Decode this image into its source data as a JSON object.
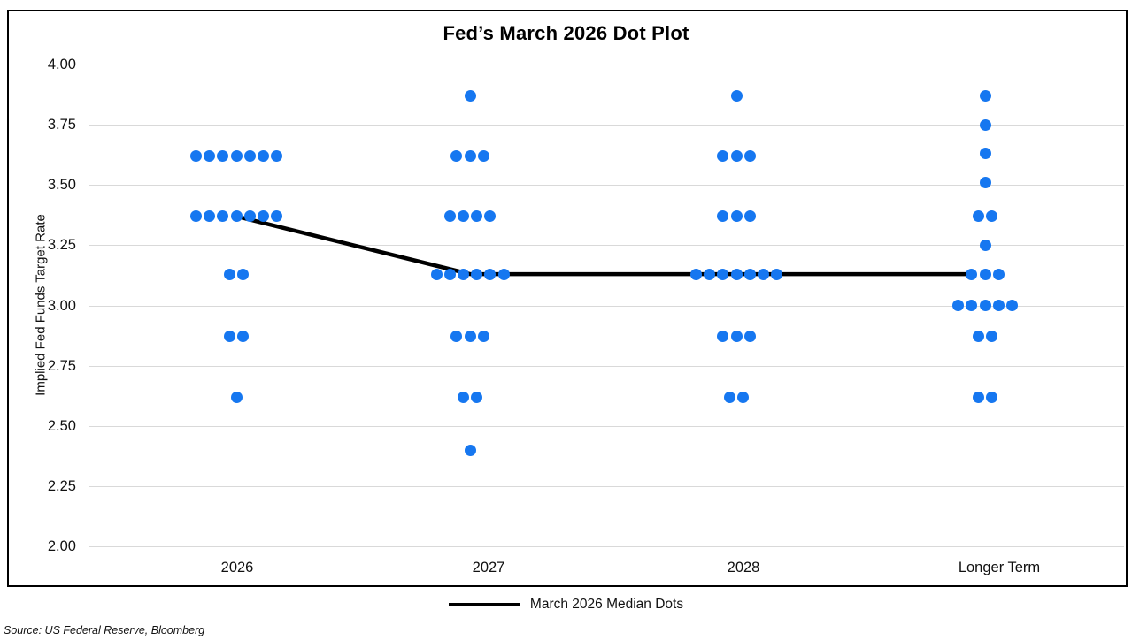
{
  "title": "Fed’s March 2026 Dot Plot",
  "y_axis": {
    "title": "Implied Fed Funds Target Rate",
    "ticks": [
      "4.00",
      "3.75",
      "3.50",
      "3.25",
      "3.00",
      "2.75",
      "2.50",
      "2.25",
      "2.00"
    ]
  },
  "x_axis": {
    "categories": [
      "2026",
      "2027",
      "2028",
      "Longer Term"
    ]
  },
  "legend": {
    "label": "March 2026 Median Dots"
  },
  "source": "Source: US Federal Reserve, Bloomberg",
  "colors": {
    "dot": "#1677f0",
    "median_line": "#000000",
    "gridline": "#d9d9d9",
    "border": "#000000"
  },
  "chart_data": {
    "type": "scatter",
    "title": "Fed’s March 2026 Dot Plot",
    "xlabel": "",
    "ylabel": "Implied Fed Funds Target Rate",
    "ylim": [
      2.0,
      4.0
    ],
    "y_tick_step": 0.25,
    "grid": "horizontal",
    "legend_position": "bottom",
    "categories": [
      "2026",
      "2027",
      "2028",
      "Longer Term"
    ],
    "dot_columns": [
      {
        "category": "2026",
        "dots": [
          {
            "rate": 3.62,
            "count": 7
          },
          {
            "rate": 3.37,
            "count": 7
          },
          {
            "rate": 3.13,
            "count": 2
          },
          {
            "rate": 2.87,
            "count": 2
          },
          {
            "rate": 2.62,
            "count": 1
          }
        ]
      },
      {
        "category": "2027",
        "dots": [
          {
            "rate": 3.87,
            "count": 1
          },
          {
            "rate": 3.62,
            "count": 3
          },
          {
            "rate": 3.37,
            "count": 4
          },
          {
            "rate": 3.13,
            "count": 6
          },
          {
            "rate": 2.87,
            "count": 3
          },
          {
            "rate": 2.62,
            "count": 2
          },
          {
            "rate": 2.4,
            "count": 1
          }
        ]
      },
      {
        "category": "2028",
        "dots": [
          {
            "rate": 3.87,
            "count": 1
          },
          {
            "rate": 3.62,
            "count": 3
          },
          {
            "rate": 3.37,
            "count": 3
          },
          {
            "rate": 3.13,
            "count": 7
          },
          {
            "rate": 2.87,
            "count": 3
          },
          {
            "rate": 2.62,
            "count": 2
          }
        ]
      },
      {
        "category": "Longer Term",
        "dots": [
          {
            "rate": 3.87,
            "count": 1
          },
          {
            "rate": 3.75,
            "count": 1
          },
          {
            "rate": 3.63,
            "count": 1
          },
          {
            "rate": 3.51,
            "count": 1
          },
          {
            "rate": 3.37,
            "count": 2
          },
          {
            "rate": 3.25,
            "count": 1
          },
          {
            "rate": 3.13,
            "count": 3
          },
          {
            "rate": 3.0,
            "count": 5
          },
          {
            "rate": 2.87,
            "count": 2
          },
          {
            "rate": 2.62,
            "count": 2
          }
        ]
      }
    ],
    "median_series": {
      "name": "March 2026 Median Dots",
      "categories": [
        "2026",
        "2027",
        "2028",
        "Longer Term"
      ],
      "values": [
        3.37,
        3.13,
        3.13,
        3.13
      ]
    }
  }
}
